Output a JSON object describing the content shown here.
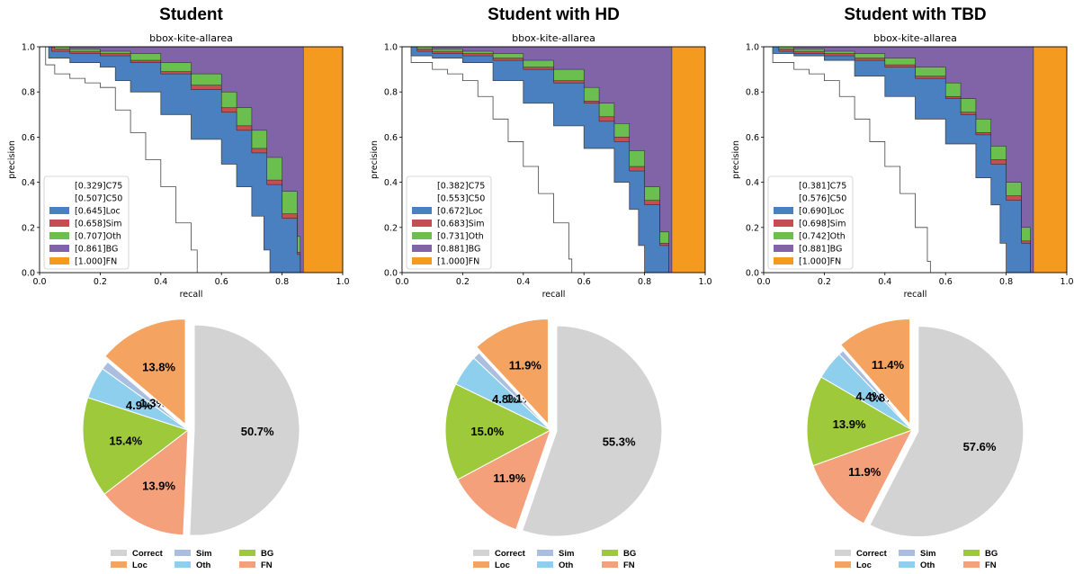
{
  "chart_data": [
    {
      "type": "area",
      "title": "Student",
      "subtitle": "bbox-kite-allarea",
      "xlabel": "recall",
      "ylabel": "precision",
      "xlim": [
        0,
        1
      ],
      "ylim": [
        0,
        1
      ],
      "xticks": [
        "0.0",
        "0.2",
        "0.4",
        "0.6",
        "0.8",
        "1.0"
      ],
      "yticks": [
        "0.0",
        "0.2",
        "0.4",
        "0.6",
        "0.8",
        "1.0"
      ],
      "legend_position": "lower-left",
      "series": [
        {
          "name": "[0.329]C75",
          "ap": 0.329,
          "color": "#ffffff",
          "x": [
            0,
            0.02,
            0.05,
            0.1,
            0.15,
            0.2,
            0.25,
            0.3,
            0.35,
            0.4,
            0.45,
            0.5,
            0.52
          ],
          "y": [
            1.0,
            0.92,
            0.88,
            0.86,
            0.84,
            0.82,
            0.72,
            0.62,
            0.5,
            0.38,
            0.22,
            0.1,
            0.0
          ]
        },
        {
          "name": "[0.507]C50",
          "ap": 0.507,
          "color": "#ffffff",
          "x": [
            0,
            0.03,
            0.1,
            0.2,
            0.25,
            0.3,
            0.4,
            0.5,
            0.6,
            0.65,
            0.7,
            0.74,
            0.76
          ],
          "y": [
            1.0,
            0.95,
            0.93,
            0.91,
            0.85,
            0.8,
            0.7,
            0.59,
            0.48,
            0.38,
            0.25,
            0.1,
            0.0
          ]
        },
        {
          "name": "[0.645]Loc",
          "ap": 0.645,
          "color": "#4a7fc0",
          "x": [
            0,
            0.04,
            0.1,
            0.2,
            0.3,
            0.4,
            0.5,
            0.6,
            0.65,
            0.7,
            0.75,
            0.8,
            0.85,
            0.86
          ],
          "y": [
            1.0,
            0.98,
            0.97,
            0.96,
            0.93,
            0.88,
            0.81,
            0.71,
            0.63,
            0.53,
            0.39,
            0.24,
            0.08,
            0.0
          ]
        },
        {
          "name": "[0.658]Sim",
          "ap": 0.658,
          "color": "#c44e52",
          "x": [
            0,
            0.05,
            0.1,
            0.2,
            0.3,
            0.4,
            0.5,
            0.6,
            0.65,
            0.7,
            0.75,
            0.8,
            0.85,
            0.86
          ],
          "y": [
            1.0,
            0.99,
            0.98,
            0.97,
            0.94,
            0.89,
            0.83,
            0.73,
            0.65,
            0.55,
            0.41,
            0.26,
            0.09,
            0.0
          ]
        },
        {
          "name": "[0.707]Oth",
          "ap": 0.707,
          "color": "#6abf4f",
          "x": [
            0,
            0.1,
            0.2,
            0.3,
            0.4,
            0.5,
            0.6,
            0.65,
            0.7,
            0.75,
            0.8,
            0.85,
            0.86
          ],
          "y": [
            1.0,
            0.99,
            0.98,
            0.97,
            0.93,
            0.88,
            0.8,
            0.73,
            0.63,
            0.51,
            0.36,
            0.16,
            0.0
          ]
        },
        {
          "name": "[0.861]BG",
          "ap": 0.861,
          "color": "#8163a8",
          "x": [
            0,
            0.86,
            0.87
          ],
          "y": [
            1.0,
            1.0,
            0.0
          ]
        },
        {
          "name": "[1.000]FN",
          "ap": 1.0,
          "color": "#f39a1f",
          "x": [
            0,
            1.0
          ],
          "y": [
            1.0,
            1.0
          ]
        }
      ]
    },
    {
      "type": "area",
      "title": "Student with HD",
      "subtitle": "bbox-kite-allarea",
      "xlabel": "recall",
      "ylabel": "precision",
      "xlim": [
        0,
        1
      ],
      "ylim": [
        0,
        1
      ],
      "xticks": [
        "0.0",
        "0.2",
        "0.4",
        "0.6",
        "0.8",
        "1.0"
      ],
      "yticks": [
        "0.0",
        "0.2",
        "0.4",
        "0.6",
        "0.8",
        "1.0"
      ],
      "legend_position": "lower-left",
      "series": [
        {
          "name": "[0.382]C75",
          "ap": 0.382,
          "color": "#ffffff",
          "x": [
            0,
            0.03,
            0.1,
            0.15,
            0.2,
            0.25,
            0.3,
            0.35,
            0.4,
            0.45,
            0.5,
            0.55,
            0.56
          ],
          "y": [
            1.0,
            0.93,
            0.9,
            0.88,
            0.85,
            0.78,
            0.68,
            0.58,
            0.47,
            0.35,
            0.22,
            0.06,
            0.0
          ]
        },
        {
          "name": "[0.553]C50",
          "ap": 0.553,
          "color": "#ffffff",
          "x": [
            0,
            0.03,
            0.1,
            0.2,
            0.3,
            0.4,
            0.5,
            0.6,
            0.7,
            0.75,
            0.78,
            0.8
          ],
          "y": [
            1.0,
            0.96,
            0.95,
            0.93,
            0.85,
            0.75,
            0.65,
            0.55,
            0.4,
            0.28,
            0.12,
            0.0
          ]
        },
        {
          "name": "[0.672]Loc",
          "ap": 0.672,
          "color": "#4a7fc0",
          "x": [
            0,
            0.05,
            0.1,
            0.2,
            0.3,
            0.4,
            0.5,
            0.6,
            0.65,
            0.7,
            0.75,
            0.8,
            0.85,
            0.88
          ],
          "y": [
            1.0,
            0.98,
            0.97,
            0.96,
            0.94,
            0.9,
            0.84,
            0.75,
            0.67,
            0.58,
            0.45,
            0.3,
            0.12,
            0.0
          ]
        },
        {
          "name": "[0.683]Sim",
          "ap": 0.683,
          "color": "#c44e52",
          "x": [
            0,
            0.05,
            0.1,
            0.2,
            0.3,
            0.4,
            0.5,
            0.6,
            0.65,
            0.7,
            0.75,
            0.8,
            0.85,
            0.88
          ],
          "y": [
            1.0,
            0.99,
            0.98,
            0.97,
            0.95,
            0.91,
            0.85,
            0.76,
            0.69,
            0.6,
            0.47,
            0.32,
            0.13,
            0.0
          ]
        },
        {
          "name": "[0.731]Oth",
          "ap": 0.731,
          "color": "#6abf4f",
          "x": [
            0,
            0.1,
            0.2,
            0.3,
            0.4,
            0.5,
            0.6,
            0.65,
            0.7,
            0.75,
            0.8,
            0.85,
            0.88
          ],
          "y": [
            1.0,
            0.99,
            0.98,
            0.97,
            0.94,
            0.9,
            0.82,
            0.75,
            0.66,
            0.54,
            0.38,
            0.18,
            0.0
          ]
        },
        {
          "name": "[0.881]BG",
          "ap": 0.881,
          "color": "#8163a8",
          "x": [
            0,
            0.88,
            0.89
          ],
          "y": [
            1.0,
            1.0,
            0.0
          ]
        },
        {
          "name": "[1.000]FN",
          "ap": 1.0,
          "color": "#f39a1f",
          "x": [
            0,
            1.0
          ],
          "y": [
            1.0,
            1.0
          ]
        }
      ]
    },
    {
      "type": "area",
      "title": "Student with TBD",
      "subtitle": "bbox-kite-allarea",
      "xlabel": "recall",
      "ylabel": "precision",
      "xlim": [
        0,
        1
      ],
      "ylim": [
        0,
        1
      ],
      "xticks": [
        "0.0",
        "0.2",
        "0.4",
        "0.6",
        "0.8",
        "1.0"
      ],
      "yticks": [
        "0.0",
        "0.2",
        "0.4",
        "0.6",
        "0.8",
        "1.0"
      ],
      "legend_position": "lower-left",
      "series": [
        {
          "name": "[0.381]C75",
          "ap": 0.381,
          "color": "#ffffff",
          "x": [
            0,
            0.03,
            0.1,
            0.15,
            0.2,
            0.25,
            0.3,
            0.35,
            0.4,
            0.45,
            0.5,
            0.54,
            0.55
          ],
          "y": [
            1.0,
            0.93,
            0.9,
            0.88,
            0.85,
            0.78,
            0.68,
            0.58,
            0.47,
            0.35,
            0.2,
            0.05,
            0.0
          ]
        },
        {
          "name": "[0.576]C50",
          "ap": 0.576,
          "color": "#ffffff",
          "x": [
            0,
            0.03,
            0.1,
            0.2,
            0.3,
            0.4,
            0.5,
            0.6,
            0.7,
            0.75,
            0.78,
            0.8
          ],
          "y": [
            1.0,
            0.97,
            0.96,
            0.94,
            0.87,
            0.78,
            0.68,
            0.57,
            0.42,
            0.3,
            0.13,
            0.0
          ]
        },
        {
          "name": "[0.690]Loc",
          "ap": 0.69,
          "color": "#4a7fc0",
          "x": [
            0,
            0.05,
            0.1,
            0.2,
            0.3,
            0.4,
            0.5,
            0.6,
            0.65,
            0.7,
            0.75,
            0.8,
            0.85,
            0.88
          ],
          "y": [
            1.0,
            0.98,
            0.97,
            0.96,
            0.94,
            0.91,
            0.86,
            0.77,
            0.7,
            0.61,
            0.48,
            0.32,
            0.13,
            0.0
          ]
        },
        {
          "name": "[0.698]Sim",
          "ap": 0.698,
          "color": "#c44e52",
          "x": [
            0,
            0.05,
            0.1,
            0.2,
            0.3,
            0.4,
            0.5,
            0.6,
            0.65,
            0.7,
            0.75,
            0.8,
            0.85,
            0.88
          ],
          "y": [
            1.0,
            0.99,
            0.98,
            0.97,
            0.95,
            0.92,
            0.87,
            0.78,
            0.71,
            0.62,
            0.5,
            0.34,
            0.14,
            0.0
          ]
        },
        {
          "name": "[0.742]Oth",
          "ap": 0.742,
          "color": "#6abf4f",
          "x": [
            0,
            0.1,
            0.2,
            0.3,
            0.4,
            0.5,
            0.6,
            0.65,
            0.7,
            0.75,
            0.8,
            0.85,
            0.88
          ],
          "y": [
            1.0,
            0.99,
            0.98,
            0.97,
            0.95,
            0.91,
            0.84,
            0.77,
            0.68,
            0.56,
            0.4,
            0.2,
            0.0
          ]
        },
        {
          "name": "[0.881]BG",
          "ap": 0.881,
          "color": "#8163a8",
          "x": [
            0,
            0.88,
            0.89
          ],
          "y": [
            1.0,
            1.0,
            0.0
          ]
        },
        {
          "name": "[1.000]FN",
          "ap": 1.0,
          "color": "#f39a1f",
          "x": [
            0,
            1.0
          ],
          "y": [
            1.0,
            1.0
          ]
        }
      ]
    },
    {
      "type": "pie",
      "categories": [
        "Correct",
        "FN",
        "BG",
        "Oth",
        "Sim",
        "Loc"
      ],
      "values": [
        50.7,
        13.9,
        15.4,
        4.9,
        1.3,
        13.8
      ],
      "labels": [
        "50.7%",
        "13.9%",
        "15.4%",
        "4.9%",
        "1.3%",
        "13.8%"
      ],
      "colors": [
        "#d3d3d3",
        "#f4a07a",
        "#9ec93b",
        "#8ecfee",
        "#aabfdf",
        "#f4a460"
      ],
      "exploded": [
        "Correct",
        "Loc"
      ]
    },
    {
      "type": "pie",
      "categories": [
        "Correct",
        "FN",
        "BG",
        "Oth",
        "Sim",
        "Loc"
      ],
      "values": [
        55.3,
        11.9,
        15.0,
        4.8,
        1.1,
        11.9
      ],
      "labels": [
        "55.3%",
        "11.9%",
        "15.0%",
        "4.8%",
        "1.1%",
        "11.9%"
      ],
      "colors": [
        "#d3d3d3",
        "#f4a07a",
        "#9ec93b",
        "#8ecfee",
        "#aabfdf",
        "#f4a460"
      ],
      "exploded": [
        "Correct",
        "Loc"
      ]
    },
    {
      "type": "pie",
      "categories": [
        "Correct",
        "FN",
        "BG",
        "Oth",
        "Sim",
        "Loc"
      ],
      "values": [
        57.6,
        11.9,
        13.9,
        4.4,
        0.8,
        11.4
      ],
      "labels": [
        "57.6%",
        "11.9%",
        "13.9%",
        "4.4%",
        "0.8%",
        "11.4%"
      ],
      "colors": [
        "#d3d3d3",
        "#f4a07a",
        "#9ec93b",
        "#8ecfee",
        "#aabfdf",
        "#f4a460"
      ],
      "exploded": [
        "Correct",
        "Loc"
      ]
    }
  ],
  "pie_legend": [
    {
      "label": "Correct",
      "color": "#d3d3d3"
    },
    {
      "label": "Sim",
      "color": "#aabfdf"
    },
    {
      "label": "BG",
      "color": "#9ec93b"
    },
    {
      "label": "Loc",
      "color": "#f4a460"
    },
    {
      "label": "Oth",
      "color": "#8ecfee"
    },
    {
      "label": "FN",
      "color": "#f4a07a"
    }
  ]
}
